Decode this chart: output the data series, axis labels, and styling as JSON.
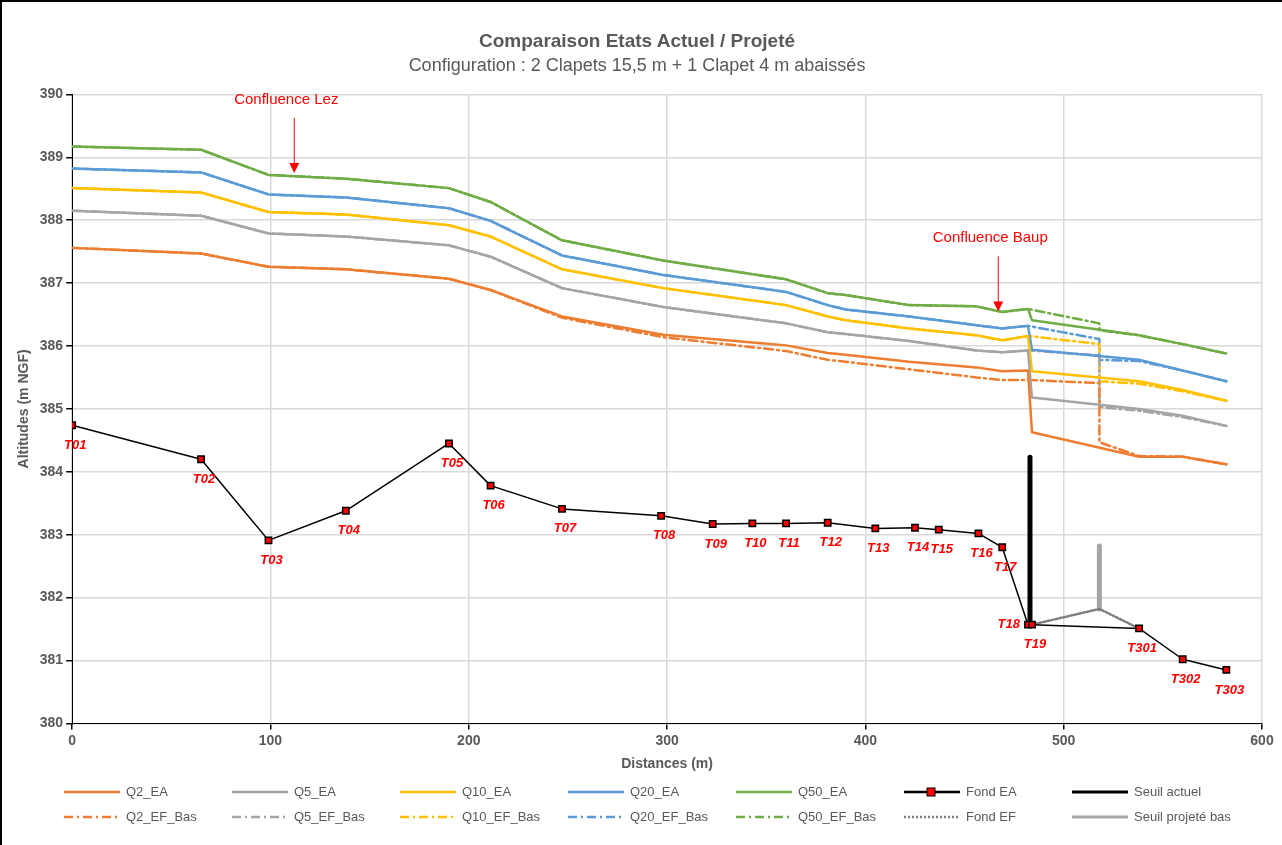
{
  "chart_data": {
    "type": "line",
    "title": "Comparaison Etats Actuel / Projeté",
    "subtitle": "Configuration : 2 Clapets 15,5 m + 1 Clapet 4 m abaissés",
    "xlabel": "Distances (m)",
    "ylabel": "Altitudes (m NGF)",
    "xlim": [
      0,
      600
    ],
    "xticks": [
      0,
      100,
      200,
      300,
      400,
      500,
      600
    ],
    "ylim": [
      380,
      390
    ],
    "yticks": [
      380,
      381,
      382,
      383,
      384,
      385,
      386,
      387,
      388,
      389,
      390
    ],
    "grid": true,
    "legend": "bottom",
    "marker": "none",
    "line_style": "solid",
    "annotations": [
      {
        "text": "Confluence Lez",
        "x": 112,
        "y": 388.75
      },
      {
        "text": "Confluence Baup",
        "x": 467,
        "y": 386.55
      }
    ],
    "series": [
      {
        "name": "Q2_EA",
        "color": "#ed7d31",
        "x": [
          0,
          65,
          99,
          138,
          190,
          211,
          247,
          298,
          360,
          381,
          390,
          422,
          456,
          469,
          482,
          484,
          538,
          560,
          582
        ],
        "values": [
          387.56,
          387.47,
          387.26,
          387.22,
          387.07,
          386.89,
          386.47,
          386.18,
          386.01,
          385.89,
          385.86,
          385.75,
          385.66,
          385.6,
          385.61,
          384.63,
          384.24,
          384.24,
          384.12
        ]
      },
      {
        "name": "Q5_EA",
        "color": "#a5a5a5",
        "x": [
          0,
          65,
          99,
          138,
          190,
          211,
          247,
          298,
          360,
          381,
          390,
          422,
          456,
          469,
          482,
          484,
          538,
          560,
          582
        ],
        "values": [
          388.15,
          388.07,
          387.79,
          387.74,
          387.6,
          387.42,
          386.92,
          386.62,
          386.36,
          386.22,
          386.19,
          386.08,
          385.93,
          385.9,
          385.93,
          385.18,
          385.0,
          384.89,
          384.73
        ]
      },
      {
        "name": "Q10_EA",
        "color": "#ffc000",
        "x": [
          0,
          65,
          99,
          138,
          190,
          211,
          247,
          298,
          360,
          381,
          390,
          422,
          456,
          469,
          482,
          484,
          538,
          560,
          582
        ],
        "values": [
          388.51,
          388.44,
          388.13,
          388.09,
          387.92,
          387.74,
          387.22,
          386.92,
          386.65,
          386.47,
          386.41,
          386.28,
          386.17,
          386.09,
          386.16,
          385.6,
          385.44,
          385.3,
          385.13
        ]
      },
      {
        "name": "Q20_EA",
        "color": "#5b9bd5",
        "x": [
          0,
          65,
          99,
          138,
          190,
          211,
          247,
          298,
          360,
          381,
          390,
          422,
          456,
          469,
          482,
          484,
          538,
          560,
          582
        ],
        "values": [
          388.82,
          388.76,
          388.41,
          388.36,
          388.19,
          387.99,
          387.44,
          387.13,
          386.86,
          386.65,
          386.58,
          386.47,
          386.33,
          386.28,
          386.32,
          385.94,
          385.78,
          385.61,
          385.44
        ]
      },
      {
        "name": "Q50_EA",
        "color": "#70ad47",
        "x": [
          0,
          65,
          99,
          138,
          190,
          211,
          247,
          298,
          360,
          381,
          390,
          422,
          456,
          469,
          482,
          484,
          538,
          560,
          582
        ],
        "values": [
          389.17,
          389.12,
          388.72,
          388.66,
          388.51,
          388.29,
          387.68,
          387.36,
          387.06,
          386.84,
          386.81,
          386.65,
          386.63,
          386.54,
          386.59,
          386.41,
          386.17,
          386.03,
          385.88
        ]
      },
      {
        "name": "Fond EA",
        "color": "#000000",
        "marker": "square",
        "x": [
          0,
          65,
          99,
          138,
          190,
          211,
          247,
          297,
          323,
          343,
          360,
          381,
          405,
          425,
          437,
          457,
          469,
          482,
          484,
          538,
          560,
          582
        ],
        "values": [
          384.74,
          384.2,
          382.91,
          383.38,
          384.45,
          383.78,
          383.41,
          383.3,
          383.17,
          383.18,
          383.18,
          383.19,
          383.1,
          383.11,
          383.08,
          383.02,
          382.8,
          381.57,
          381.57,
          381.51,
          381.02,
          380.85
        ],
        "value_labels": [
          "T01",
          "T02",
          "T03",
          "T04",
          "T05",
          "T06",
          "T07",
          "T08",
          "T09",
          "T10",
          "T11",
          "T12",
          "T13",
          "T14",
          "T15",
          "T16",
          "T17",
          "T18",
          "T19",
          "T301",
          "T302",
          "T303"
        ]
      },
      {
        "name": "Seuil actuel",
        "color": "#000000",
        "x": [
          483,
          483
        ],
        "values": [
          381.57,
          384.23
        ]
      },
      {
        "name": "Q2_EF_Bas",
        "color": "#ed7d31",
        "line_style": "dashed",
        "x": [
          0,
          65,
          99,
          138,
          190,
          211,
          247,
          298,
          360,
          381,
          390,
          422,
          456,
          469,
          482,
          518,
          518,
          538,
          560,
          582
        ],
        "values": [
          387.56,
          387.47,
          387.26,
          387.22,
          387.07,
          386.89,
          386.45,
          386.14,
          385.92,
          385.78,
          385.75,
          385.63,
          385.5,
          385.46,
          385.46,
          385.41,
          384.47,
          384.25,
          384.24,
          384.12
        ]
      },
      {
        "name": "Q5_EF_Bas",
        "color": "#a5a5a5",
        "line_style": "dashed",
        "x": [
          0,
          65,
          99,
          138,
          190,
          211,
          247,
          298,
          360,
          381,
          390,
          422,
          456,
          469,
          482,
          518,
          518,
          538,
          560,
          582
        ],
        "values": [
          388.15,
          388.07,
          387.79,
          387.74,
          387.6,
          387.42,
          386.92,
          386.62,
          386.36,
          386.22,
          386.19,
          386.08,
          385.93,
          385.9,
          385.93,
          385.85,
          385.03,
          384.97,
          384.87,
          384.73
        ]
      },
      {
        "name": "Q10_EF_Bas",
        "color": "#ffc000",
        "line_style": "dashed",
        "x": [
          0,
          65,
          99,
          138,
          190,
          211,
          247,
          298,
          360,
          381,
          390,
          422,
          456,
          469,
          482,
          518,
          518,
          538,
          560,
          582
        ],
        "values": [
          388.51,
          388.44,
          388.13,
          388.09,
          387.92,
          387.74,
          387.22,
          386.92,
          386.65,
          386.47,
          386.41,
          386.28,
          386.17,
          386.09,
          386.16,
          386.03,
          385.44,
          385.4,
          385.28,
          385.13
        ]
      },
      {
        "name": "Q20_EF_Bas",
        "color": "#5b9bd5",
        "line_style": "dashed",
        "x": [
          0,
          65,
          99,
          138,
          190,
          211,
          247,
          298,
          360,
          381,
          390,
          422,
          456,
          469,
          482,
          518,
          518,
          538,
          560,
          582
        ],
        "values": [
          388.82,
          388.76,
          388.41,
          388.36,
          388.19,
          387.99,
          387.44,
          387.13,
          386.86,
          386.65,
          386.58,
          386.47,
          386.33,
          386.28,
          386.32,
          386.11,
          385.78,
          385.76,
          385.61,
          385.44
        ]
      },
      {
        "name": "Q50_EF_Bas",
        "color": "#70ad47",
        "line_style": "dashed",
        "x": [
          0,
          65,
          99,
          138,
          190,
          211,
          247,
          298,
          360,
          381,
          390,
          422,
          456,
          469,
          482,
          518,
          518,
          538,
          560,
          582
        ],
        "values": [
          389.17,
          389.12,
          388.72,
          388.66,
          388.51,
          388.29,
          387.68,
          387.36,
          387.06,
          386.84,
          386.81,
          386.65,
          386.63,
          386.54,
          386.59,
          386.36,
          386.25,
          386.17,
          386.03,
          385.88
        ]
      },
      {
        "name": "Fond EF",
        "color": "#7f7f7f",
        "line_style": "dotted",
        "x": [
          484,
          518,
          538
        ],
        "values": [
          381.57,
          381.82,
          381.51
        ]
      },
      {
        "name": "Seuil projeté bas",
        "color": "#a5a5a5",
        "x": [
          518,
          518
        ],
        "values": [
          381.82,
          382.82
        ]
      }
    ]
  }
}
